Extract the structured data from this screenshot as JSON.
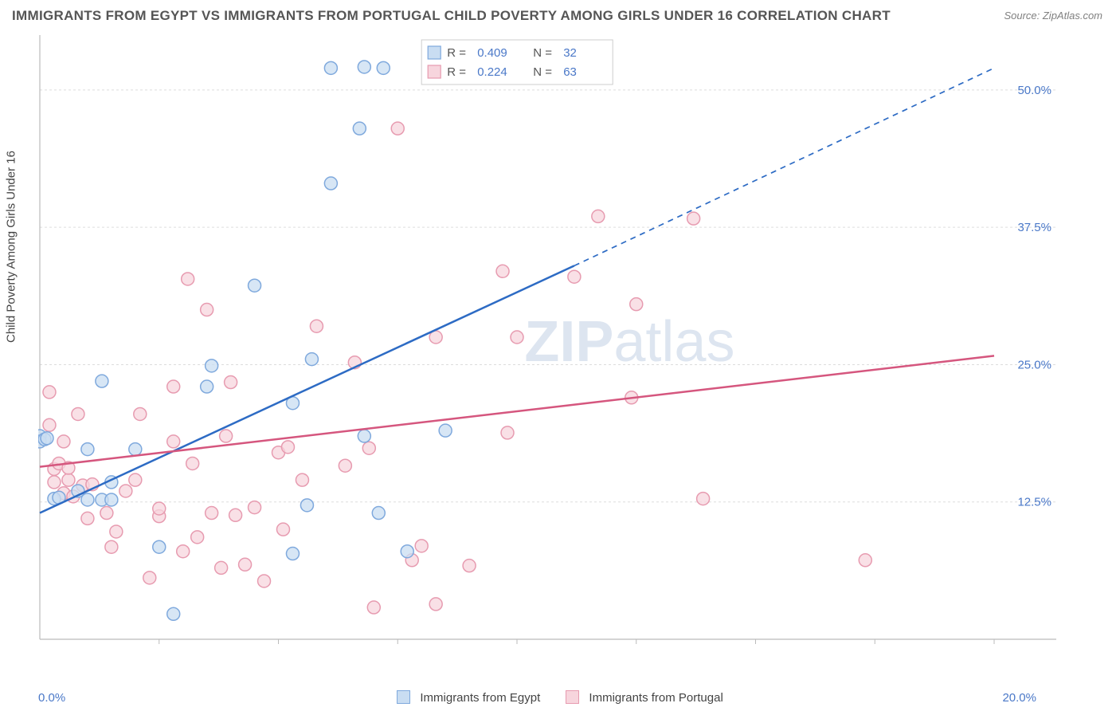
{
  "title": "IMMIGRANTS FROM EGYPT VS IMMIGRANTS FROM PORTUGAL CHILD POVERTY AMONG GIRLS UNDER 16 CORRELATION CHART",
  "source_label": "Source: ZipAtlas.com",
  "ylabel": "Child Poverty Among Girls Under 16",
  "watermark_bold": "ZIP",
  "watermark_rest": "atlas",
  "chart": {
    "type": "scatter-with-regression",
    "background_color": "#ffffff",
    "grid_color": "#dddddd",
    "axis_color": "#bbbbbb",
    "tick_label_color": "#4a78c8",
    "tick_fontsize": 15,
    "xlim": [
      0,
      20
    ],
    "ylim": [
      0,
      55
    ],
    "xticks": [
      0,
      20
    ],
    "xtick_labels": [
      "0.0%",
      "20.0%"
    ],
    "yticks": [
      12.5,
      25.0,
      37.5,
      50.0
    ],
    "ytick_labels": [
      "12.5%",
      "25.0%",
      "37.5%",
      "50.0%"
    ],
    "xgrid_positions": [
      2.5,
      5,
      7.5,
      10,
      12.5,
      15,
      17.5,
      20
    ],
    "marker_radius": 8,
    "marker_stroke_width": 1.5,
    "trend_line_width": 2.5,
    "series": [
      {
        "id": "egypt",
        "label": "Immigrants from Egypt",
        "color_fill": "#c9ddf2",
        "color_stroke": "#7fa9dd",
        "trend_color": "#2d6bc4",
        "R": "0.409",
        "N": "32",
        "trend": {
          "x1": 0,
          "y1": 11.5,
          "x2": 11.2,
          "y2": 34.0,
          "x2_ext": 20,
          "y2_ext": 52.0
        },
        "points": [
          [
            0.0,
            18.5
          ],
          [
            0.0,
            18.0
          ],
          [
            0.1,
            18.2
          ],
          [
            0.15,
            18.3
          ],
          [
            0.3,
            12.8
          ],
          [
            0.4,
            12.9
          ],
          [
            0.8,
            13.5
          ],
          [
            1.0,
            12.7
          ],
          [
            1.3,
            12.7
          ],
          [
            1.5,
            12.7
          ],
          [
            1.0,
            17.3
          ],
          [
            1.5,
            14.3
          ],
          [
            1.3,
            23.5
          ],
          [
            2.0,
            17.3
          ],
          [
            2.5,
            8.4
          ],
          [
            2.8,
            2.3
          ],
          [
            3.5,
            23.0
          ],
          [
            3.6,
            24.9
          ],
          [
            4.5,
            32.2
          ],
          [
            5.3,
            21.5
          ],
          [
            5.7,
            25.5
          ],
          [
            5.3,
            7.8
          ],
          [
            5.6,
            12.2
          ],
          [
            6.1,
            41.5
          ],
          [
            6.1,
            52.0
          ],
          [
            6.7,
            46.5
          ],
          [
            6.8,
            52.1
          ],
          [
            7.2,
            52.0
          ],
          [
            6.8,
            18.5
          ],
          [
            7.1,
            11.5
          ],
          [
            7.7,
            8.0
          ],
          [
            8.5,
            19.0
          ]
        ]
      },
      {
        "id": "portugal",
        "label": "Immigrants from Portugal",
        "color_fill": "#f7d5dd",
        "color_stroke": "#e79bb0",
        "trend_color": "#d5567e",
        "R": "0.224",
        "N": "63",
        "trend": {
          "x1": 0,
          "y1": 15.7,
          "x2": 20,
          "y2": 25.8
        },
        "points": [
          [
            0.2,
            22.5
          ],
          [
            0.2,
            19.5
          ],
          [
            0.3,
            15.5
          ],
          [
            0.3,
            14.3
          ],
          [
            0.4,
            16.0
          ],
          [
            0.5,
            18.0
          ],
          [
            0.5,
            13.3
          ],
          [
            0.6,
            14.5
          ],
          [
            0.6,
            15.6
          ],
          [
            0.7,
            13.0
          ],
          [
            0.8,
            20.5
          ],
          [
            0.9,
            14.0
          ],
          [
            1.0,
            11.0
          ],
          [
            1.1,
            14.1
          ],
          [
            1.4,
            11.5
          ],
          [
            1.5,
            8.4
          ],
          [
            1.6,
            9.8
          ],
          [
            1.8,
            13.5
          ],
          [
            2.0,
            14.5
          ],
          [
            2.1,
            20.5
          ],
          [
            2.3,
            5.6
          ],
          [
            2.5,
            11.2
          ],
          [
            2.5,
            11.9
          ],
          [
            2.8,
            23.0
          ],
          [
            3.0,
            8.0
          ],
          [
            3.1,
            32.8
          ],
          [
            3.3,
            9.3
          ],
          [
            3.5,
            30.0
          ],
          [
            3.6,
            11.5
          ],
          [
            3.8,
            6.5
          ],
          [
            3.9,
            18.5
          ],
          [
            4.0,
            23.4
          ],
          [
            4.3,
            6.8
          ],
          [
            4.5,
            12.0
          ],
          [
            4.7,
            5.3
          ],
          [
            5.0,
            17.0
          ],
          [
            5.2,
            17.5
          ],
          [
            5.5,
            14.5
          ],
          [
            5.8,
            28.5
          ],
          [
            6.4,
            15.8
          ],
          [
            6.6,
            25.2
          ],
          [
            6.9,
            17.4
          ],
          [
            7.0,
            2.9
          ],
          [
            7.5,
            46.5
          ],
          [
            7.8,
            7.2
          ],
          [
            8.0,
            8.5
          ],
          [
            8.3,
            27.5
          ],
          [
            8.3,
            3.2
          ],
          [
            9.0,
            6.7
          ],
          [
            9.7,
            33.5
          ],
          [
            9.8,
            18.8
          ],
          [
            10.0,
            27.5
          ],
          [
            11.2,
            33.0
          ],
          [
            11.7,
            38.5
          ],
          [
            12.4,
            22.0
          ],
          [
            12.5,
            30.5
          ],
          [
            13.7,
            38.3
          ],
          [
            13.9,
            12.8
          ],
          [
            17.3,
            7.2
          ],
          [
            2.8,
            18.0
          ],
          [
            3.2,
            16.0
          ],
          [
            4.1,
            11.3
          ],
          [
            5.1,
            10.0
          ]
        ]
      }
    ]
  },
  "legend_box": {
    "bg": "#ffffff",
    "border": "#cccccc",
    "text_color": "#555555",
    "value_color": "#4a78c8",
    "R_label": "R =",
    "N_label": "N ="
  }
}
